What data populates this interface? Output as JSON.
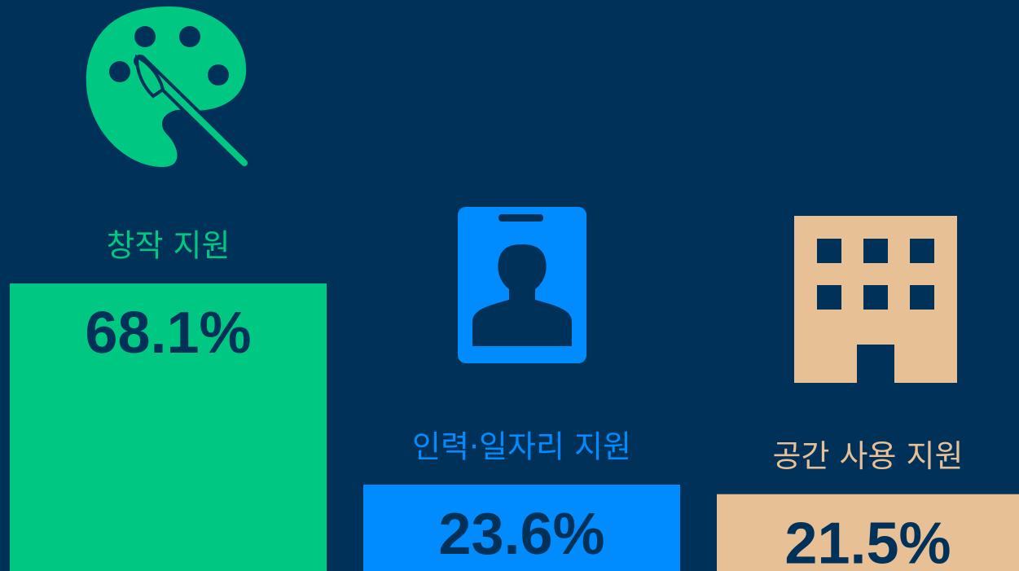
{
  "chart_data": {
    "type": "bar",
    "categories": [
      "창작 지원",
      "인력·일자리 지원",
      "공간 사용 지원"
    ],
    "values": [
      68.1,
      23.6,
      21.5
    ],
    "value_labels": [
      "68.1%",
      "23.6%",
      "21.5%"
    ],
    "colors": [
      "#00c882",
      "#008cff",
      "#e8c096"
    ]
  }
}
